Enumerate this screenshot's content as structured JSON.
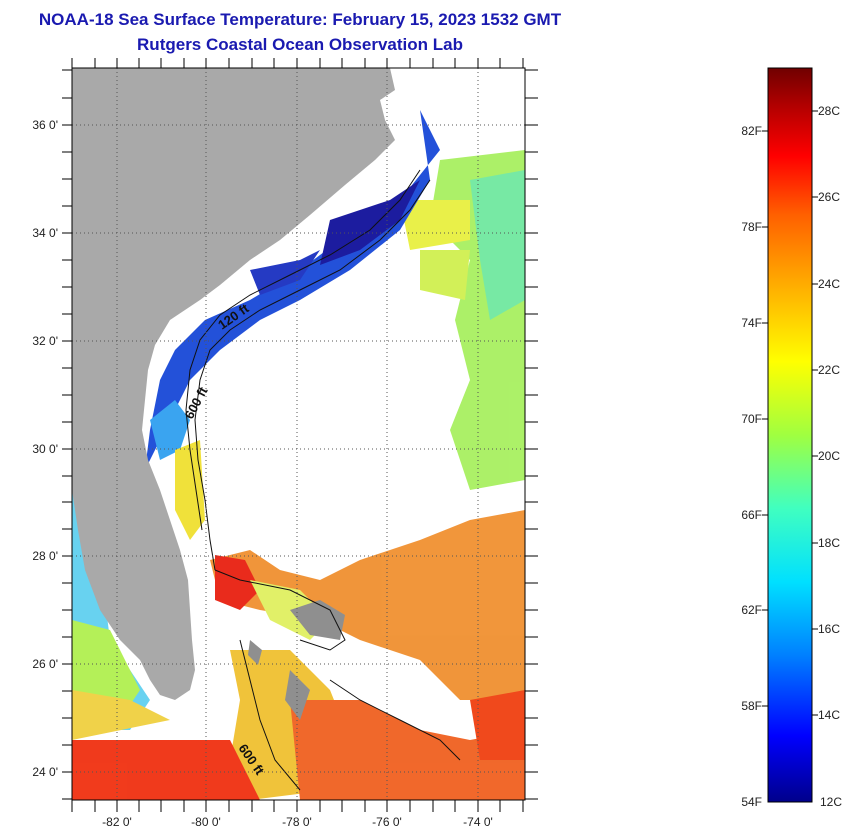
{
  "title": "NOAA-18 Sea Surface Temperature:  February 15, 2023 1532 GMT",
  "subtitle": "Rutgers Coastal Ocean Observation Lab",
  "map": {
    "lat_labels": [
      "36 0'",
      "34 0'",
      "32 0'",
      "30 0'",
      "28 0'",
      "26 0'",
      "24 0'"
    ],
    "lon_labels": [
      "-82 0'",
      "-80 0'",
      "-78 0'",
      "-76 0'",
      "-74 0'"
    ],
    "contour_labels": [
      "120 ft",
      "600 ft",
      "600 ft"
    ],
    "colors": {
      "land": "#a9a9a9",
      "cloud": "#ffffff"
    }
  },
  "colorbar": {
    "fahrenheit": [
      "82F",
      "78F",
      "74F",
      "70F",
      "66F",
      "62F",
      "58F",
      "54F"
    ],
    "celsius": [
      "28C",
      "26C",
      "24C",
      "22C",
      "20C",
      "18C",
      "16C",
      "14C",
      "12C"
    ],
    "stops": [
      "#00008b",
      "#0000ff",
      "#0080ff",
      "#00e0ff",
      "#40ffc0",
      "#a0ff40",
      "#ffff00",
      "#ffb000",
      "#ff6000",
      "#ff0000",
      "#b00000",
      "#700000"
    ]
  }
}
